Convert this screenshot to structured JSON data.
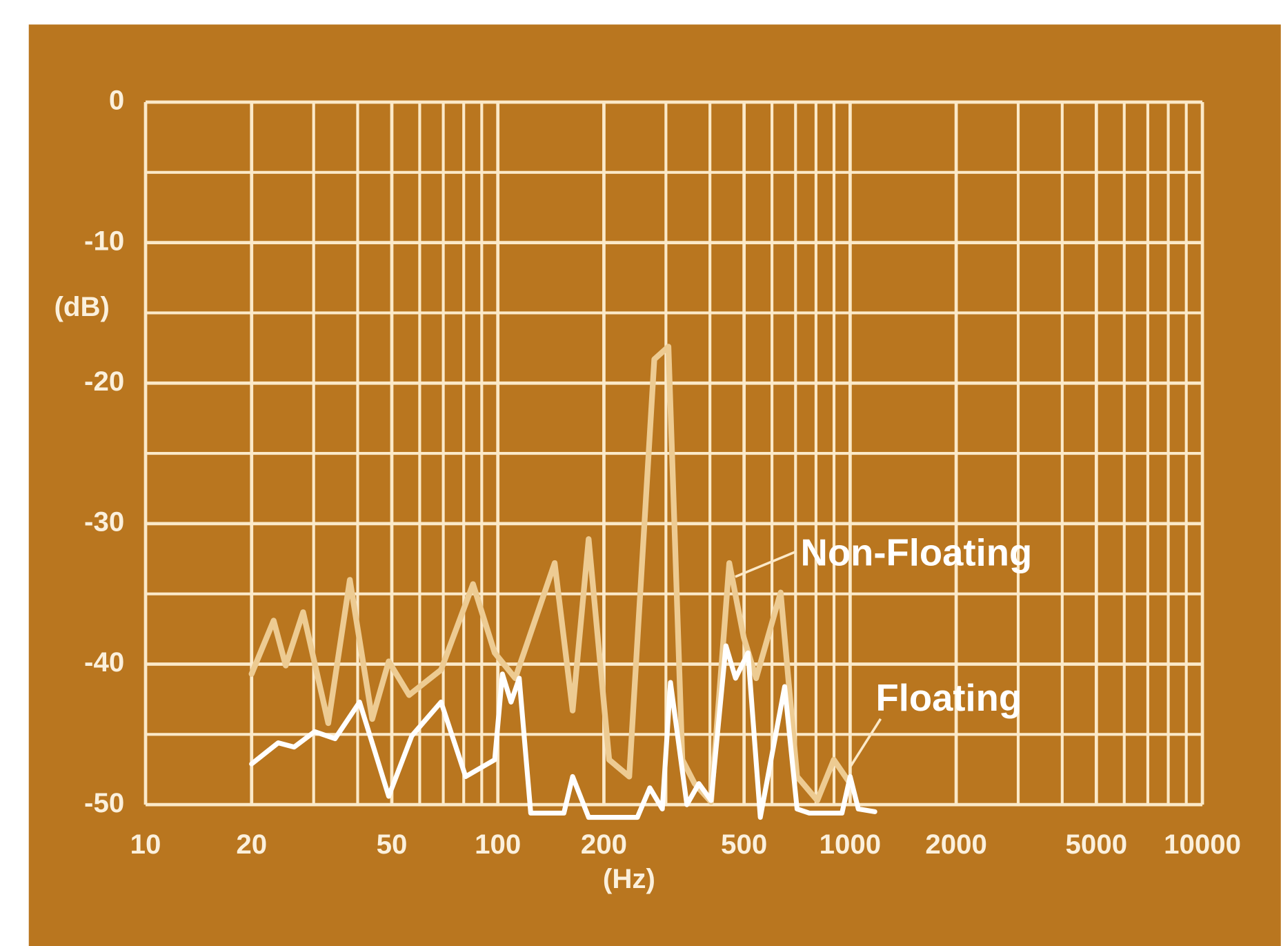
{
  "chart_data": {
    "type": "line",
    "xlabel": "(Hz)",
    "ylabel": "(dB)",
    "xscale": "log",
    "xlim": [
      10,
      10000
    ],
    "ylim": [
      -50,
      0
    ],
    "xticks": [
      10,
      20,
      50,
      100,
      200,
      500,
      1000,
      2000,
      5000,
      10000
    ],
    "xminor": [
      30,
      40,
      60,
      70,
      80,
      90,
      300,
      400,
      600,
      700,
      800,
      900,
      3000,
      4000,
      6000,
      7000,
      8000,
      9000
    ],
    "yticks": [
      0,
      -10,
      -20,
      -30,
      -40,
      -50
    ],
    "yminor": [
      -5,
      -15,
      -25,
      -35,
      -45
    ],
    "grid": true,
    "series": [
      {
        "name": "Non-Floating",
        "color": "#edcb92",
        "x": [
          20,
          23.1,
          25,
          28,
          33,
          38,
          44,
          49,
          56,
          69,
          85,
          98,
          112,
          145,
          163,
          181,
          207,
          236,
          278,
          305,
          334,
          362,
          403,
          454,
          499,
          541,
          635,
          707,
          807,
          899,
          1000
        ],
        "values": [
          -40.7,
          -36.9,
          -40.1,
          -36.3,
          -44.2,
          -34,
          -43.9,
          -39.8,
          -42.2,
          -40.4,
          -34.3,
          -39.2,
          -41,
          -32.8,
          -43.3,
          -31.1,
          -46.8,
          -48,
          -18.3,
          -17.4,
          -46.8,
          -48.5,
          -49.8,
          -32.8,
          -38.1,
          -41,
          -34.9,
          -48,
          -49.7,
          -46.8,
          -48.5
        ]
      },
      {
        "name": "Floating",
        "color": "#ffffff",
        "x": [
          20,
          23.8,
          26.4,
          30.2,
          34.5,
          40.5,
          49,
          57,
          69,
          81,
          98,
          103,
          109,
          115,
          124,
          154,
          163,
          181,
          249,
          270,
          293,
          309,
          344,
          372,
          403,
          444,
          473,
          513,
          556,
          652,
          707,
          766,
          948,
          1000,
          1055,
          1175
        ],
        "values": [
          -47.1,
          -45.6,
          -45.9,
          -44.8,
          -45.3,
          -42.7,
          -49.4,
          -45.1,
          -42.7,
          -48,
          -46.8,
          -40.7,
          -42.7,
          -41,
          -50.6,
          -50.6,
          -48,
          -50.9,
          -50.9,
          -48.8,
          -50.3,
          -41.3,
          -50,
          -48.5,
          -49.7,
          -38.7,
          -41,
          -39.2,
          -50.9,
          -41.6,
          -50.3,
          -50.6,
          -50.6,
          -48,
          -50.3,
          -50.5
        ]
      }
    ]
  }
}
